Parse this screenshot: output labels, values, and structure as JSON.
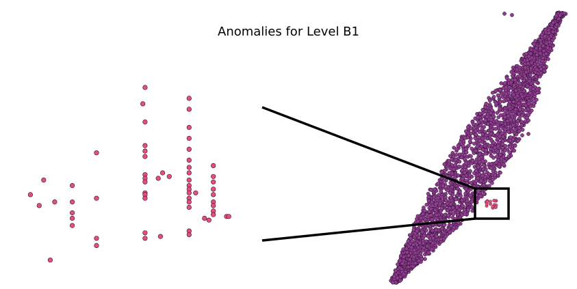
{
  "title": "Anomalies for Level B1",
  "colors": {
    "anomaly": "#e3507f",
    "anomaly_stroke": "#3a1020",
    "cluster": "#8e3d8f",
    "cluster_stroke": "#2a0d2b",
    "zoom_lines": "#000000"
  },
  "chart_data": [
    {
      "type": "scatter",
      "name": "zoomed-anomalies",
      "title": "",
      "xlabel": "",
      "ylabel": "",
      "grid": false,
      "legend": "none",
      "axes_visible": false,
      "xlim": [
        0,
        10
      ],
      "ylim": [
        0,
        10
      ],
      "series": [
        {
          "role": "anomaly",
          "points": [
            [
              0.2,
              3.8
            ],
            [
              0.8,
              4.6
            ],
            [
              0.6,
              3.2
            ],
            [
              1.3,
              3.4
            ],
            [
              1.1,
              0.2
            ],
            [
              2.1,
              4.3
            ],
            [
              2.1,
              3.4
            ],
            [
              2.1,
              2.8
            ],
            [
              2.1,
              2.5
            ],
            [
              2.1,
              2.1
            ],
            [
              3.2,
              6.1
            ],
            [
              3.2,
              3.6
            ],
            [
              3.2,
              1.4
            ],
            [
              3.2,
              1.0
            ],
            [
              5.4,
              7.8
            ],
            [
              5.3,
              8.8
            ],
            [
              5.4,
              9.7
            ],
            [
              5.4,
              6.5
            ],
            [
              5.4,
              6.2
            ],
            [
              5.4,
              5.9
            ],
            [
              5.4,
              4.9
            ],
            [
              5.4,
              4.7
            ],
            [
              5.4,
              4.5
            ],
            [
              5.4,
              3.9
            ],
            [
              5.4,
              3.8
            ],
            [
              5.4,
              3.6
            ],
            [
              5.4,
              1.7
            ],
            [
              5.4,
              1.4
            ],
            [
              6.2,
              5.0
            ],
            [
              6.5,
              4.8
            ],
            [
              6.0,
              4.7
            ],
            [
              6.1,
              1.5
            ],
            [
              7.4,
              9.1
            ],
            [
              7.4,
              8.5
            ],
            [
              7.4,
              7.5
            ],
            [
              7.4,
              6.9
            ],
            [
              7.4,
              6.3
            ],
            [
              7.4,
              5.7
            ],
            [
              7.4,
              5.3
            ],
            [
              7.4,
              5.0
            ],
            [
              7.4,
              4.6
            ],
            [
              7.4,
              4.3
            ],
            [
              7.4,
              4.1
            ],
            [
              7.4,
              3.9
            ],
            [
              7.4,
              3.6
            ],
            [
              7.4,
              3.4
            ],
            [
              7.4,
              3.1
            ],
            [
              7.4,
              1.8
            ],
            [
              7.4,
              1.6
            ],
            [
              7.7,
              3.9
            ],
            [
              8.1,
              2.5
            ],
            [
              8.5,
              4.8
            ],
            [
              8.5,
              4.5
            ],
            [
              8.5,
              4.1
            ],
            [
              8.5,
              3.8
            ],
            [
              8.5,
              3.4
            ],
            [
              8.5,
              3.2
            ],
            [
              8.5,
              2.9
            ],
            [
              8.5,
              2.7
            ],
            [
              8.5,
              5.4
            ],
            [
              8.3,
              2.4
            ],
            [
              9.1,
              2.6
            ],
            [
              9.2,
              2.6
            ]
          ]
        }
      ]
    },
    {
      "type": "scatter",
      "name": "full-point-cloud",
      "title": "",
      "xlabel": "",
      "ylabel": "",
      "grid": false,
      "legend": "none",
      "axes_visible": false,
      "series": [
        {
          "role": "normal",
          "description_shape": "dense diagonal band from lower-left to upper-right"
        },
        {
          "role": "anomaly",
          "description_shape": "small cluster inside the highlighted box"
        }
      ]
    }
  ]
}
